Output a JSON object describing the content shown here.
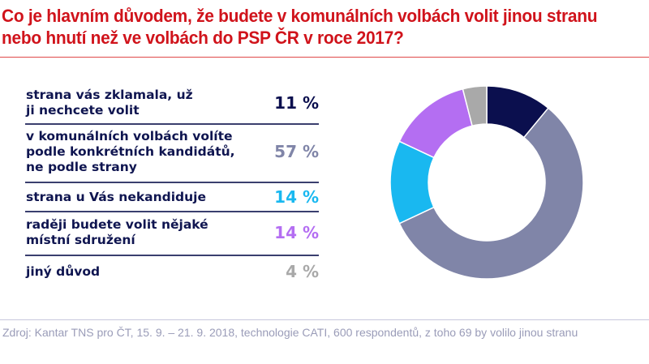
{
  "title": "Co je hlavním důvodem, že budete v komunálních volbách volit jinou stranu nebo hnutí než ve volbách do PSP ČR v roce 2017?",
  "source": "Zdroj: Kantar TNS pro ČT, 15. 9. – 21. 9. 2018, technologie CATI, 600 respondentů, z toho 69 by volilo jinou stranu",
  "chart_data": {
    "type": "pie",
    "variant": "donut",
    "start": "top, clockwise",
    "categories": [
      "strana vás zklamala, už ji nechcete volit",
      "v komunálních volbách volíte podle konkrétních kandidátů, ne podle strany",
      "strana u Vás nekandiduje",
      "raději budete volit nějaké místní sdružení",
      "jiný důvod"
    ],
    "values": [
      11,
      57,
      14,
      14,
      4
    ],
    "value_labels": [
      "11 %",
      "57 %",
      "14 %",
      "14 %",
      "4 %"
    ],
    "colors": [
      "#0b0f4e",
      "#8085a8",
      "#19b8f0",
      "#b46ef2",
      "#a9a9a9"
    ]
  }
}
